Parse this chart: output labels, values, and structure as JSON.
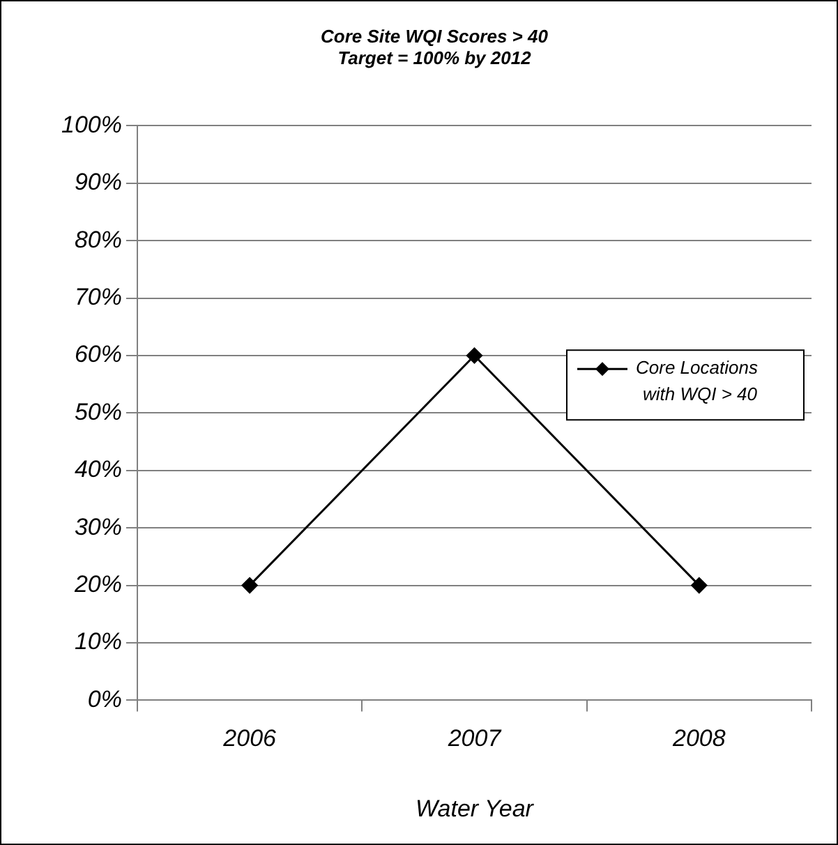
{
  "chart_data": {
    "type": "line",
    "title": "Core Site WQI Scores > 40\nTarget = 100% by 2012",
    "xlabel": "Water Year",
    "categories": [
      "2006",
      "2007",
      "2008"
    ],
    "series": [
      {
        "name": "Core Locations with WQI > 40",
        "color": "#000000",
        "values": [
          20,
          60,
          20
        ]
      }
    ],
    "ylim": [
      0,
      100
    ],
    "yticks": [
      {
        "value": 0,
        "label": "0%"
      },
      {
        "value": 10,
        "label": "10%"
      },
      {
        "value": 20,
        "label": "20%"
      },
      {
        "value": 30,
        "label": "30%"
      },
      {
        "value": 40,
        "label": "40%"
      },
      {
        "value": 50,
        "label": "50%"
      },
      {
        "value": 60,
        "label": "60%"
      },
      {
        "value": 70,
        "label": "70%"
      },
      {
        "value": 80,
        "label": "80%"
      },
      {
        "value": 90,
        "label": "90%"
      },
      {
        "value": 100,
        "label": "100%"
      }
    ],
    "grid": "y",
    "legend": "right",
    "marker": "diamond",
    "line_style": "solid"
  }
}
